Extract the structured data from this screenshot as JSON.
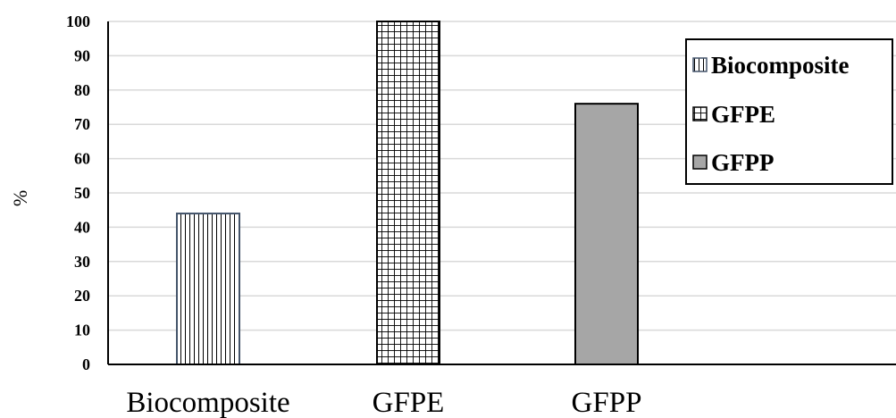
{
  "chart_data": {
    "type": "bar",
    "categories": [
      "Biocomposite",
      "GFPE",
      "GFPP"
    ],
    "values": [
      44,
      100,
      76
    ],
    "ylabel": "%",
    "xlabel": "",
    "title": "",
    "ylim": [
      0,
      100
    ],
    "yticks": [
      0,
      10,
      20,
      30,
      40,
      50,
      60,
      70,
      80,
      90,
      100
    ],
    "grid": true,
    "legend": {
      "placement": "top-right",
      "entries": [
        "Biocomposite",
        "GFPE",
        "GFPP"
      ]
    },
    "patterns": [
      "vertical-lines",
      "grid",
      "solid-gray"
    ],
    "colors": {
      "gfpp_fill": "#a6a6a6",
      "grid": "#d9d9d9",
      "axis": "#000000",
      "bio_edge": "#44546a"
    }
  }
}
